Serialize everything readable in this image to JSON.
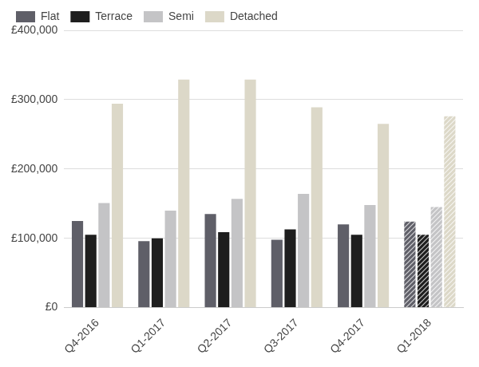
{
  "chart_data": {
    "type": "bar",
    "categories": [
      "Q4-2016",
      "Q1-2017",
      "Q2-2017",
      "Q3-2017",
      "Q4-2017",
      "Q1-2018"
    ],
    "series": [
      {
        "name": "Flat",
        "color": "#5f5f68",
        "values": [
          125000,
          96000,
          135000,
          98000,
          120000,
          124000
        ]
      },
      {
        "name": "Terrace",
        "color": "#1e1e1e",
        "values": [
          105000,
          100000,
          109000,
          113000,
          105000,
          105000
        ]
      },
      {
        "name": "Semi",
        "color": "#c4c4c6",
        "values": [
          151000,
          140000,
          157000,
          164000,
          148000,
          145000
        ]
      },
      {
        "name": "Detached",
        "color": "#dcd8c8",
        "values": [
          294000,
          329000,
          329000,
          289000,
          265000,
          276000
        ]
      }
    ],
    "ylim": [
      0,
      400000
    ],
    "yticks": [
      {
        "value": 0,
        "label": "£0"
      },
      {
        "value": 100000,
        "label": "£100,000"
      },
      {
        "value": 200000,
        "label": "£200,000"
      },
      {
        "value": 300000,
        "label": "£300,000"
      },
      {
        "value": 400000,
        "label": "£400,000"
      }
    ],
    "grid": true,
    "legend": "top"
  }
}
